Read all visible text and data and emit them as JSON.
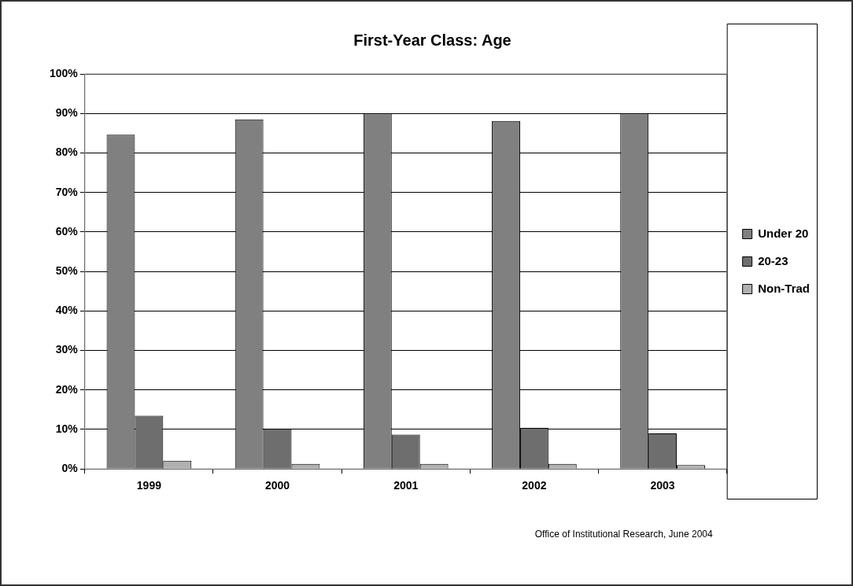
{
  "chart_data": {
    "type": "bar",
    "title": "First-Year Class: Age",
    "categories": [
      "1999",
      "2000",
      "2001",
      "2002",
      "2003"
    ],
    "series": [
      {
        "name": "Under 20",
        "color": "#808080",
        "values": [
          84.6,
          88.5,
          90.0,
          88.1,
          90.0
        ]
      },
      {
        "name": "20-23",
        "color": "#6e6e6e",
        "values": [
          13.5,
          10.1,
          8.7,
          10.4,
          9.0
        ]
      },
      {
        "name": "Non-Trad",
        "color": "#b0b0b0",
        "values": [
          2.1,
          1.3,
          1.3,
          1.3,
          1.0
        ]
      }
    ],
    "ylim": [
      0,
      100
    ],
    "yticks": [
      {
        "value": 0,
        "label": "0%"
      },
      {
        "value": 10,
        "label": "10%"
      },
      {
        "value": 20,
        "label": "20%"
      },
      {
        "value": 30,
        "label": "30%"
      },
      {
        "value": 40,
        "label": "40%"
      },
      {
        "value": 50,
        "label": "50%"
      },
      {
        "value": 60,
        "label": "60%"
      },
      {
        "value": 70,
        "label": "70%"
      },
      {
        "value": 80,
        "label": "80%"
      },
      {
        "value": 90,
        "label": "90%"
      },
      {
        "value": 100,
        "label": "100%"
      }
    ],
    "grid": "y",
    "legend": "right",
    "annotations": [
      "Office of Institutional Research, June 2004"
    ]
  }
}
